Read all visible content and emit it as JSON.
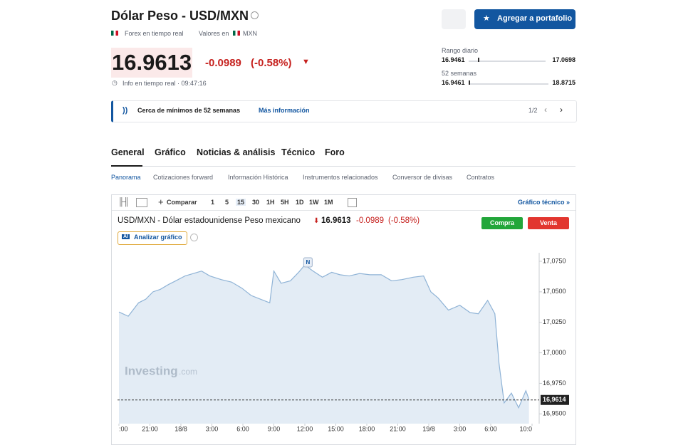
{
  "header": {
    "title": "Dólar Peso - USD/MXN",
    "market": "Forex en tiempo real",
    "currency_label": "Valores en",
    "currency": "MXN",
    "add_button": "Agregar a portafolio"
  },
  "quote": {
    "price": "16.9613",
    "change": "-0.0989",
    "change_pct": "(-0.58%)",
    "info": "Info en tiempo real · 09:47:16"
  },
  "ranges": [
    {
      "label": "Rango diario",
      "low": "16.9461",
      "high": "17.0698"
    },
    {
      "label": "52 semanas",
      "low": "16.9461",
      "high": "18.8715"
    }
  ],
  "alert": {
    "text": "Cerca de mínimos de 52 semanas",
    "link": "Más información",
    "pager": "1/2"
  },
  "tabs": [
    "General",
    "Gráfico",
    "Noticias & análisis",
    "Técnico",
    "Foro"
  ],
  "subtabs": [
    "Panorama",
    "Cotizaciones forward",
    "Información Histórica",
    "Instrumentos relacionados",
    "Conversor de divisas",
    "Contratos"
  ],
  "toolbar": {
    "compare": "Comparar",
    "intervals": [
      "1",
      "5",
      "15",
      "30",
      "1H",
      "5H",
      "1D",
      "1W",
      "1M"
    ],
    "technical": "Gráfico técnico »"
  },
  "chart_panel": {
    "instrument": "USD/MXN - Dólar estadounidense Peso mexicano",
    "price": "16.9613",
    "change": "-0.0989",
    "change_pct": "(-0.58%)",
    "buy": "Compra",
    "sell": "Venta",
    "analyze": "Analizar gráfico",
    "watermark": "Investing",
    "watermark_suffix": ".com"
  },
  "chart_data": {
    "type": "area",
    "x": [
      0,
      0.9,
      1.9,
      2.6,
      3.3,
      4.0,
      4.8,
      5.5,
      6.4,
      7.2,
      8.0,
      8.8,
      9.9,
      10.9,
      11.9,
      12.8,
      13.7,
      14.6,
      15.0,
      15.7,
      16.6,
      17.4,
      18.0,
      18.8,
      19.7,
      20.6,
      21.4,
      22.3,
      23.3,
      24.3,
      25.4,
      26.4,
      27.4,
      28.5,
      29.5,
      30.2,
      30.9,
      31.9,
      33.0,
      34.0,
      34.8,
      35.7,
      36.4,
      36.8,
      37.3,
      38.0,
      38.7,
      39.4,
      39.7
    ],
    "series": [
      {
        "name": "USD/MXN",
        "color": "#8fb3d6",
        "values": [
          17.0335,
          17.03,
          17.041,
          17.044,
          17.05,
          17.052,
          17.056,
          17.059,
          17.063,
          17.065,
          17.067,
          17.063,
          17.06,
          17.058,
          17.053,
          17.047,
          17.044,
          17.041,
          17.067,
          17.057,
          17.059,
          17.066,
          17.072,
          17.067,
          17.062,
          17.066,
          17.064,
          17.063,
          17.065,
          17.064,
          17.064,
          17.059,
          17.06,
          17.062,
          17.063,
          17.05,
          17.045,
          17.035,
          17.039,
          17.033,
          17.032,
          17.043,
          17.032,
          16.9915,
          16.959,
          16.967,
          16.955,
          16.969,
          16.962
        ]
      }
    ],
    "xlim": [
      0,
      40
    ],
    "ylim": [
      16.942,
      17.082
    ],
    "xticks": [
      {
        "value": 0,
        "label": ":00"
      },
      {
        "value": 3,
        "label": "21:00"
      },
      {
        "value": 6,
        "label": "18/8"
      },
      {
        "value": 9,
        "label": "3:00"
      },
      {
        "value": 12,
        "label": "6:00"
      },
      {
        "value": 15,
        "label": "9:00"
      },
      {
        "value": 18,
        "label": "12:00"
      },
      {
        "value": 21,
        "label": "15:00"
      },
      {
        "value": 24,
        "label": "18:00"
      },
      {
        "value": 27,
        "label": "21:00"
      },
      {
        "value": 30,
        "label": "19/8"
      },
      {
        "value": 33,
        "label": "3:00"
      },
      {
        "value": 36,
        "label": "6:00"
      },
      {
        "value": 40,
        "label": "10:0"
      }
    ],
    "yticks": [
      {
        "value": 17.075,
        "label": "17,0750"
      },
      {
        "value": 17.05,
        "label": "17,0500"
      },
      {
        "value": 17.025,
        "label": "17,0250"
      },
      {
        "value": 17.0,
        "label": "17,0000"
      },
      {
        "value": 16.975,
        "label": "16,9750"
      },
      {
        "value": 16.95,
        "label": "16,9500"
      }
    ],
    "last_price": {
      "value": 16.9614,
      "label": "16,9614"
    },
    "markers": [
      {
        "x": 18.3,
        "label": "N"
      }
    ],
    "grid": false
  }
}
